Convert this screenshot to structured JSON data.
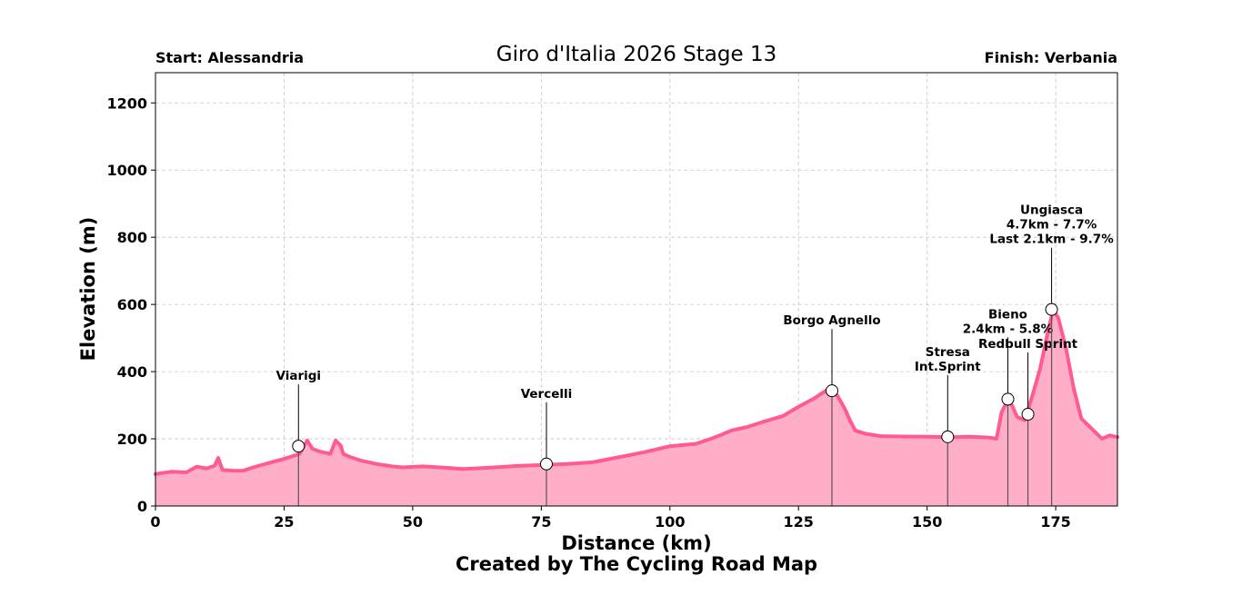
{
  "chart_data": {
    "type": "area",
    "title": "Giro d'Italia 2026 Stage 13",
    "start_label": "Start: Alessandria",
    "finish_label": "Finish: Verbania",
    "xlabel": "Distance (km)",
    "ylabel": "Elevation (m)",
    "credit": "Created by The Cycling Road Map",
    "xlim": [
      0,
      187
    ],
    "ylim": [
      0,
      1290
    ],
    "x_ticks": [
      0,
      25,
      50,
      75,
      100,
      125,
      150,
      175
    ],
    "y_ticks": [
      0,
      200,
      400,
      600,
      800,
      1000,
      1200
    ],
    "grid": true,
    "line_color": "#ff5b91",
    "fill_color": "#ffaec8",
    "profile": [
      [
        0,
        95
      ],
      [
        3,
        102
      ],
      [
        6,
        100
      ],
      [
        8,
        117
      ],
      [
        10,
        112
      ],
      [
        11.5,
        120
      ],
      [
        12.2,
        143
      ],
      [
        13,
        108
      ],
      [
        15,
        105
      ],
      [
        17,
        105
      ],
      [
        19,
        115
      ],
      [
        22,
        128
      ],
      [
        25,
        140
      ],
      [
        28,
        155
      ],
      [
        29.5,
        195
      ],
      [
        30.5,
        170
      ],
      [
        32,
        162
      ],
      [
        34,
        155
      ],
      [
        35,
        195
      ],
      [
        36,
        180
      ],
      [
        36.5,
        155
      ],
      [
        38,
        145
      ],
      [
        40,
        135
      ],
      [
        43,
        125
      ],
      [
        46,
        118
      ],
      [
        48,
        115
      ],
      [
        52,
        118
      ],
      [
        56,
        114
      ],
      [
        60,
        110
      ],
      [
        66,
        115
      ],
      [
        70,
        119
      ],
      [
        75,
        122
      ],
      [
        80,
        125
      ],
      [
        85,
        130
      ],
      [
        90,
        145
      ],
      [
        95,
        160
      ],
      [
        100,
        178
      ],
      [
        105,
        185
      ],
      [
        108,
        200
      ],
      [
        110,
        212
      ],
      [
        112,
        225
      ],
      [
        115,
        235
      ],
      [
        118,
        250
      ],
      [
        122,
        268
      ],
      [
        125,
        295
      ],
      [
        128,
        320
      ],
      [
        131,
        350
      ],
      [
        132.5,
        330
      ],
      [
        134,
        290
      ],
      [
        135,
        255
      ],
      [
        136,
        225
      ],
      [
        138,
        215
      ],
      [
        141,
        208
      ],
      [
        145,
        207
      ],
      [
        150,
        206
      ],
      [
        155,
        205
      ],
      [
        158,
        206
      ],
      [
        162,
        204
      ],
      [
        163.5,
        200
      ],
      [
        164.5,
        280
      ],
      [
        165.5,
        310
      ],
      [
        166.5,
        300
      ],
      [
        167.5,
        265
      ],
      [
        169,
        255
      ],
      [
        170.5,
        330
      ],
      [
        172,
        410
      ],
      [
        173.5,
        520
      ],
      [
        174.5,
        583
      ],
      [
        175.5,
        560
      ],
      [
        177,
        470
      ],
      [
        178.5,
        350
      ],
      [
        180,
        260
      ],
      [
        182,
        230
      ],
      [
        184,
        200
      ],
      [
        185.5,
        210
      ],
      [
        187,
        205
      ]
    ],
    "annotations": [
      {
        "x": 27.8,
        "y": 178,
        "lines": [
          "Viarigi"
        ]
      },
      {
        "x": 76.0,
        "y": 125,
        "lines": [
          "Vercelli"
        ]
      },
      {
        "x": 131.5,
        "y": 343,
        "lines": [
          "Borgo Agnello"
        ]
      },
      {
        "x": 154.0,
        "y": 206,
        "lines": [
          "Stresa",
          "Int.Sprint"
        ]
      },
      {
        "x": 165.7,
        "y": 318,
        "lines": [
          "Bieno",
          "2.4km - 5.8%"
        ]
      },
      {
        "x": 169.6,
        "y": 273,
        "lines": [
          "Redbull Sprint"
        ]
      },
      {
        "x": 174.2,
        "y": 585,
        "lines": [
          "Ungiasca",
          "4.7km - 7.7%",
          "Last 2.1km - 9.7%"
        ]
      }
    ]
  }
}
